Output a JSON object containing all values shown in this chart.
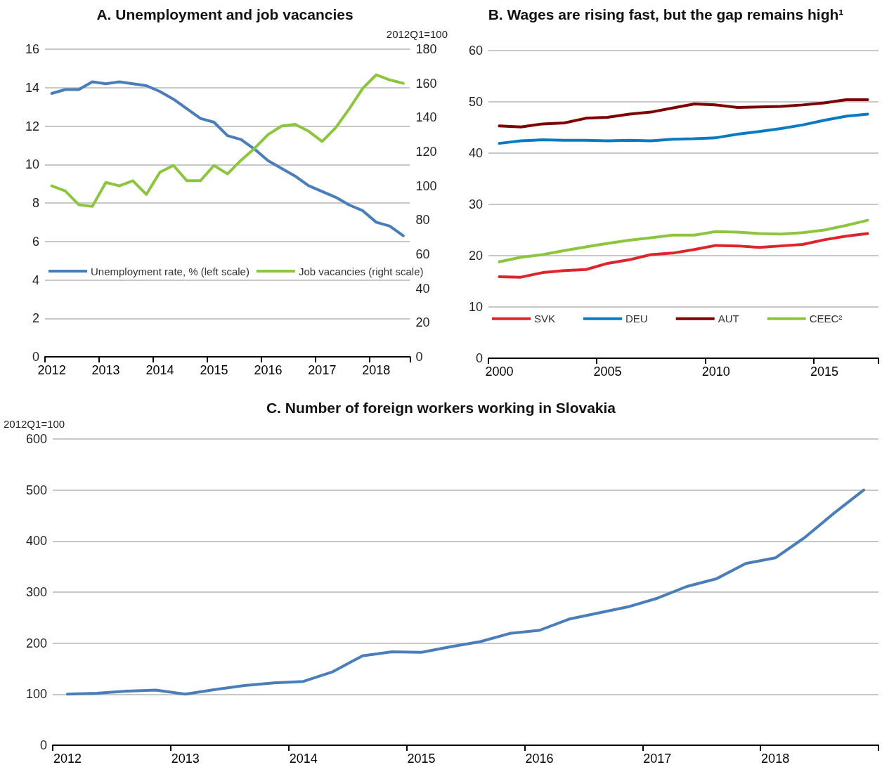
{
  "chart_data": [
    {
      "type": "line",
      "title": "A. Unemployment and job vacancies",
      "y2label": "2012Q1=100",
      "categories": [
        "2012",
        null,
        null,
        null,
        "2013",
        null,
        null,
        null,
        "2014",
        null,
        null,
        null,
        "2015",
        null,
        null,
        null,
        "2016",
        null,
        null,
        null,
        "2017",
        null,
        null,
        null,
        "2018",
        null,
        null
      ],
      "series": [
        {
          "name": "Unemployment rate, % (left scale)",
          "color": "#4a7ebb",
          "values": [
            13.7,
            13.9,
            13.9,
            14.3,
            14.2,
            14.3,
            14.2,
            14.1,
            13.8,
            13.4,
            12.9,
            12.4,
            12.2,
            11.5,
            11.3,
            10.8,
            10.2,
            9.8,
            9.4,
            8.9,
            8.6,
            8.3,
            7.9,
            7.6,
            7.0,
            6.8,
            6.3
          ]
        },
        {
          "name": "Job vacancies (right scale)",
          "color": "#8cc63f",
          "axis": "y2",
          "values": [
            100,
            97,
            89,
            88,
            102,
            100,
            103,
            95,
            108,
            112,
            103,
            103,
            112,
            107,
            115,
            122,
            130,
            135,
            136,
            132,
            126,
            134,
            145,
            157,
            165,
            162,
            160
          ]
        }
      ],
      "ylim": [
        0,
        16
      ],
      "yticks": [
        0,
        2,
        4,
        6,
        8,
        10,
        12,
        14,
        16
      ],
      "y2lim": [
        0,
        180
      ],
      "y2ticks": [
        0,
        20,
        40,
        60,
        80,
        100,
        120,
        140,
        160,
        180
      ],
      "grid": "y",
      "legend": "bottom",
      "marker": "none",
      "line_style": "solid"
    },
    {
      "type": "line",
      "title": "B. Wages are rising fast, but the gap remains high¹",
      "categories": [
        "2000",
        null,
        null,
        null,
        null,
        "2005",
        null,
        null,
        null,
        null,
        "2010",
        null,
        null,
        null,
        null,
        "2015",
        null,
        null
      ],
      "series": [
        {
          "name": "SVK",
          "color": "#e0242b",
          "values": [
            15.9,
            15.8,
            16.7,
            17.1,
            17.3,
            18.5,
            19.2,
            20.2,
            20.5,
            21.2,
            22.0,
            21.9,
            21.6,
            21.9,
            22.2,
            23.1,
            23.8,
            24.3
          ]
        },
        {
          "name": "DEU",
          "color": "#0a7bc1",
          "values": [
            41.9,
            42.4,
            42.6,
            42.5,
            42.5,
            42.4,
            42.5,
            42.4,
            42.7,
            42.8,
            43.0,
            43.7,
            44.2,
            44.8,
            45.5,
            46.4,
            47.2,
            47.6
          ]
        },
        {
          "name": "AUT",
          "color": "#7f0000",
          "values": [
            45.3,
            45.1,
            45.7,
            45.9,
            46.8,
            47.0,
            47.6,
            48.0,
            48.8,
            49.6,
            49.4,
            48.9,
            49.0,
            49.1,
            49.4,
            49.8,
            50.4,
            50.4
          ]
        },
        {
          "name": "CEEC²",
          "color": "#8cc63f",
          "values": [
            18.8,
            19.7,
            20.2,
            21.0,
            21.7,
            22.4,
            23.0,
            23.5,
            24.0,
            24.0,
            24.7,
            24.6,
            24.3,
            24.2,
            24.5,
            25.0,
            25.9,
            26.9
          ]
        }
      ],
      "ylim": [
        0,
        60
      ],
      "yticks": [
        0,
        10,
        20,
        30,
        40,
        50,
        60
      ],
      "grid": "y",
      "legend": "bottom",
      "marker": "none",
      "line_style": "solid"
    },
    {
      "type": "line",
      "title": "C. Number of foreign workers working in Slovakia",
      "ylabel": "2012Q1=100",
      "categories": [
        "2012",
        null,
        null,
        null,
        "2013",
        null,
        null,
        null,
        "2014",
        null,
        null,
        null,
        "2015",
        null,
        null,
        null,
        "2016",
        null,
        null,
        null,
        "2017",
        null,
        null,
        null,
        "2018",
        null,
        null,
        null
      ],
      "series": [
        {
          "color": "#4a7ebb",
          "values": [
            100,
            102,
            106,
            108,
            100,
            109,
            117,
            122,
            125,
            144,
            175,
            183,
            182,
            193,
            203,
            219,
            225,
            247,
            259,
            271,
            288,
            311,
            326,
            356,
            367,
            407,
            455,
            500
          ]
        }
      ],
      "ylim": [
        0,
        600
      ],
      "yticks": [
        0,
        100,
        200,
        300,
        400,
        500,
        600
      ],
      "grid": "y",
      "marker": "none",
      "line_style": "solid"
    }
  ]
}
